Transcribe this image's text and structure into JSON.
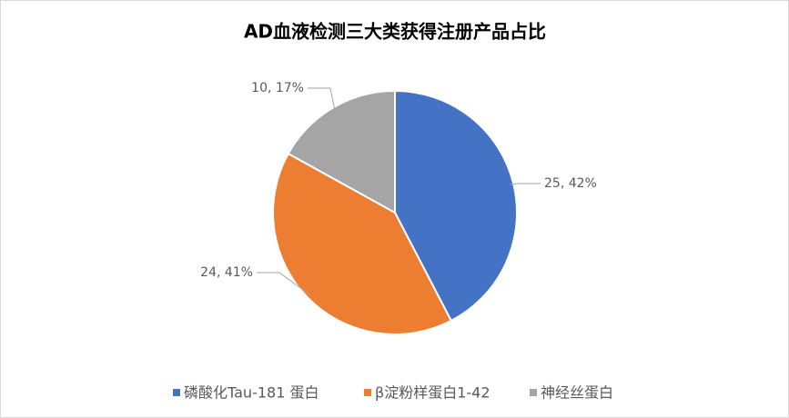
{
  "chart_data": {
    "type": "pie",
    "title": "AD血液检测三大类获得注册产品占比",
    "categories": [
      "磷酸化Tau-181 蛋白",
      "β淀粉样蛋白1-42",
      "神经丝蛋白"
    ],
    "values": [
      25,
      24,
      10
    ],
    "value_labels": [
      "25, 42%",
      "24, 41%",
      "10, 17%"
    ],
    "colors": [
      "#4472c4",
      "#ed7d31",
      "#a5a5a5"
    ],
    "legend": "bottom"
  }
}
